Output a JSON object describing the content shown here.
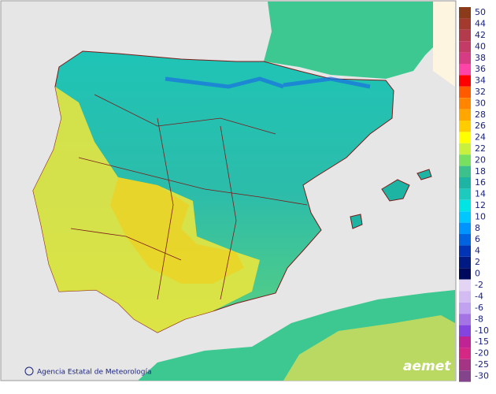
{
  "map": {
    "credit": "Agencia Estatal de Meteorología",
    "logo": "aemet"
  },
  "legend": {
    "positive": [
      {
        "label": 50,
        "color": "#8b3a1a"
      },
      {
        "label": 44,
        "color": "#a33a2e"
      },
      {
        "label": 42,
        "color": "#b23c4c"
      },
      {
        "label": 40,
        "color": "#c23c66"
      },
      {
        "label": 38,
        "color": "#d63c84"
      },
      {
        "label": 36,
        "color": "#ff44a8"
      },
      {
        "label": 34,
        "color": "#ff0000"
      },
      {
        "label": 32,
        "color": "#ff5a00"
      },
      {
        "label": 30,
        "color": "#ff8400"
      },
      {
        "label": 28,
        "color": "#ffa600"
      },
      {
        "label": 26,
        "color": "#ffcc00"
      },
      {
        "label": 24,
        "color": "#ffff00"
      },
      {
        "label": 22,
        "color": "#c8f03c"
      },
      {
        "label": 20,
        "color": "#78e060"
      },
      {
        "label": 18,
        "color": "#3cc08c"
      },
      {
        "label": 16,
        "color": "#1eb4a4"
      },
      {
        "label": 14,
        "color": "#1ecabe"
      },
      {
        "label": 12,
        "color": "#00e4e4"
      },
      {
        "label": 10,
        "color": "#00c8ff"
      },
      {
        "label": 8,
        "color": "#0094ff"
      },
      {
        "label": 6,
        "color": "#0064e0"
      },
      {
        "label": 4,
        "color": "#0034b4"
      },
      {
        "label": 2,
        "color": "#001a84"
      },
      {
        "label": 0,
        "color": "#000a5c"
      }
    ],
    "negative": [
      {
        "label": -2,
        "color": "#e4d4f4"
      },
      {
        "label": -4,
        "color": "#d2bcf2"
      },
      {
        "label": -6,
        "color": "#c0a2f0"
      },
      {
        "label": -8,
        "color": "#a474e4"
      },
      {
        "label": -10,
        "color": "#8444e0"
      },
      {
        "label": -15,
        "color": "#c02494"
      },
      {
        "label": -20,
        "color": "#d42884"
      },
      {
        "label": -25,
        "color": "#a43484"
      },
      {
        "label": -30,
        "color": "#84448c"
      }
    ]
  }
}
